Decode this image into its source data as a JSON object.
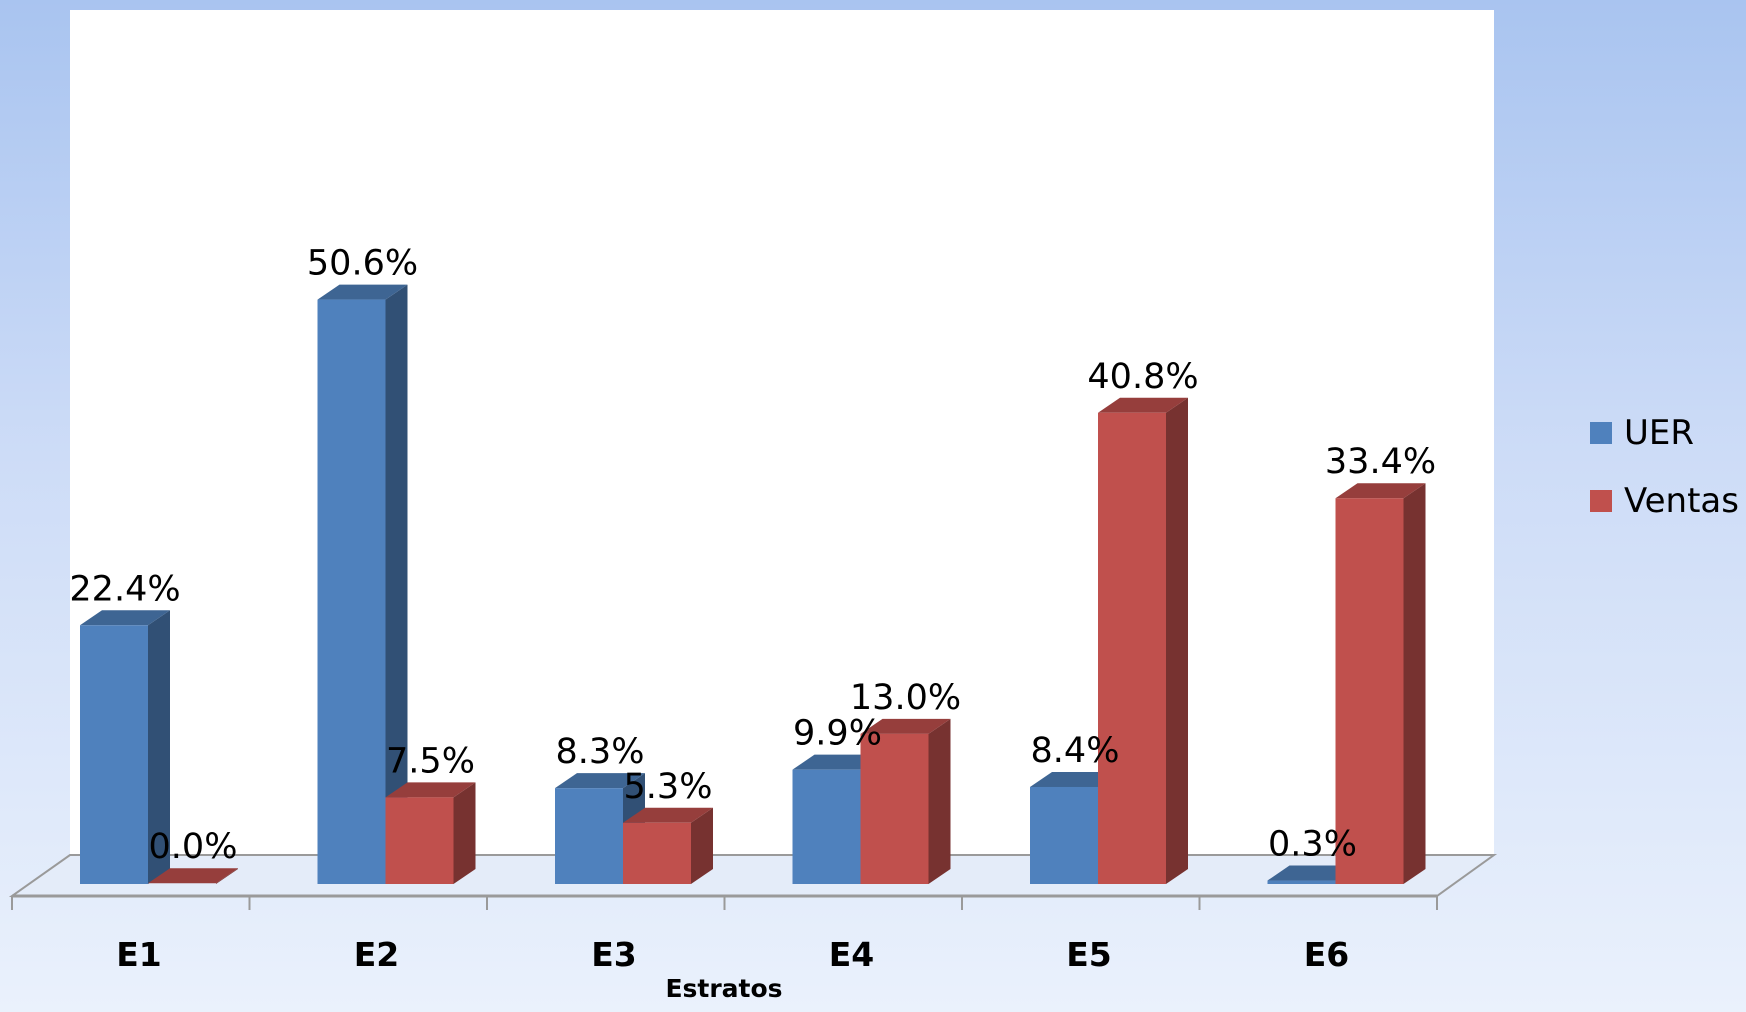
{
  "chart_data": {
    "type": "bar",
    "categories": [
      "E1",
      "E2",
      "E3",
      "E4",
      "E5",
      "E6"
    ],
    "series": [
      {
        "name": "UER",
        "values": [
          22.4,
          50.6,
          8.3,
          9.9,
          8.4,
          0.3
        ],
        "labels": [
          "22.4%",
          "50.6%",
          "8.3%",
          "9.9%",
          "8.4%",
          "0.3%"
        ],
        "color": "#4f81bd"
      },
      {
        "name": "Ventas",
        "values": [
          0.0,
          7.5,
          5.3,
          13.0,
          40.8,
          33.4
        ],
        "labels": [
          "0.0%",
          "7.5%",
          "5.3%",
          "13.0%",
          "40.8%",
          "33.4%"
        ],
        "color": "#c0504d"
      }
    ],
    "xlabel": "Estratos",
    "ylabel": "",
    "title": "",
    "ylim": [
      0,
      55
    ],
    "legend_position": "right",
    "grid": false,
    "style": "3d-clustered-column",
    "data_labels": true
  }
}
